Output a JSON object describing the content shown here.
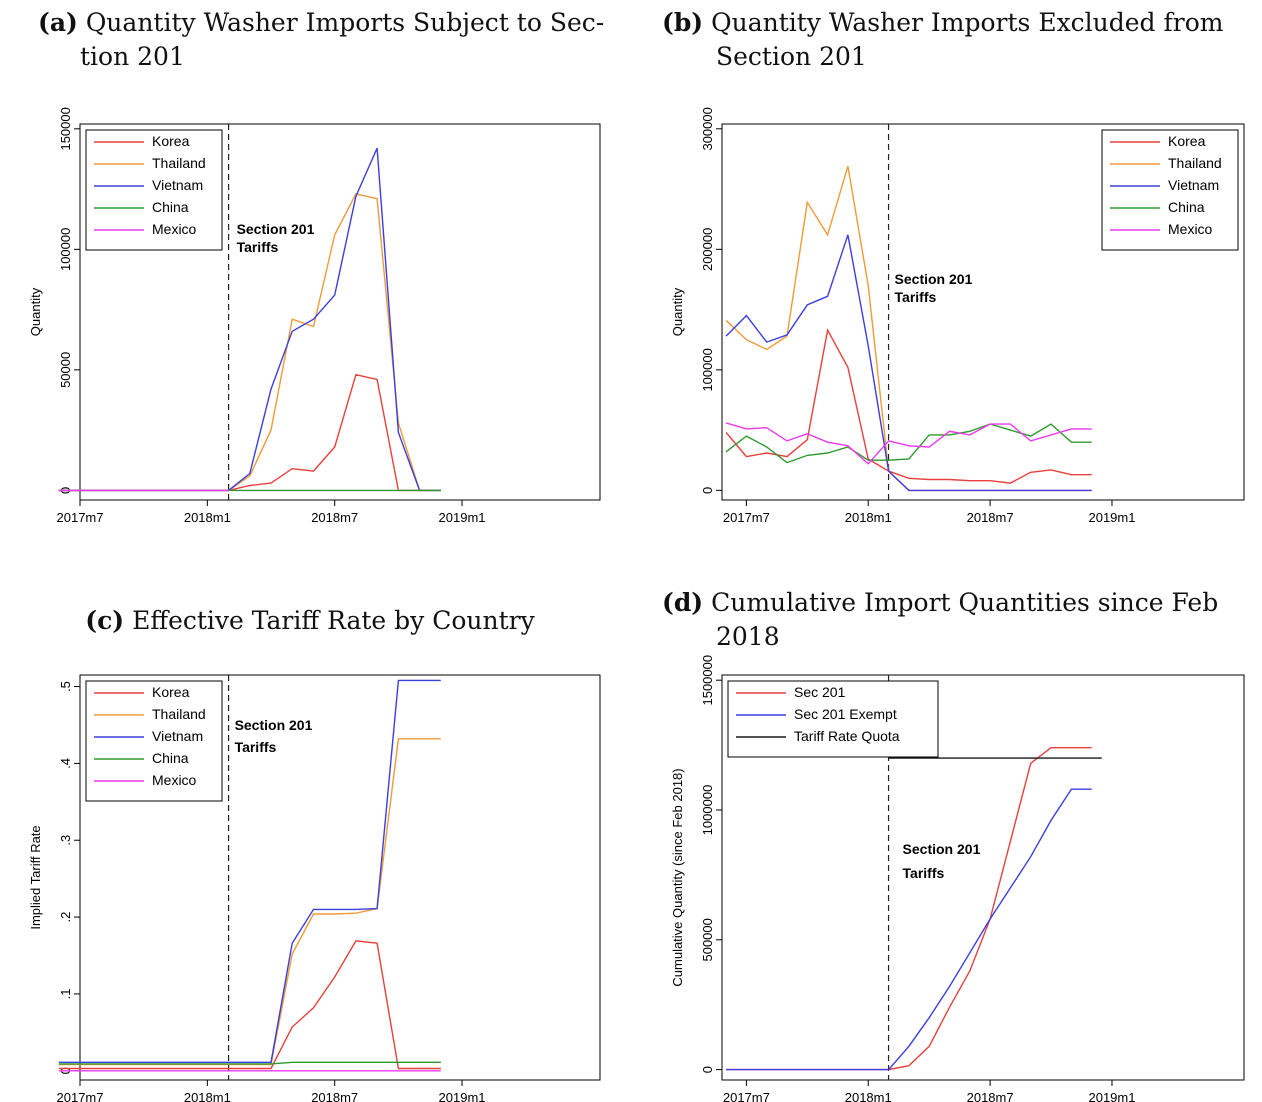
{
  "chart_data": [
    {
      "id": "a",
      "type": "line",
      "tag": "(a)",
      "title": "Quantity Washer Imports Subject to Section 201",
      "caption_lines": [
        "Quantity Washer Imports Subject to Sec-",
        "tion 201"
      ],
      "ylabel": "Quantity",
      "xlabel": "",
      "xlim": [
        0,
        24.5
      ],
      "ylim": [
        -4000,
        152000
      ],
      "yticks": [
        {
          "v": 0,
          "label": "0"
        },
        {
          "v": 50000,
          "label": "50000"
        },
        {
          "v": 100000,
          "label": "100000"
        },
        {
          "v": 150000,
          "label": "150000"
        }
      ],
      "xticks": [
        {
          "v": 0,
          "label": "2017m7"
        },
        {
          "v": 6,
          "label": "2018m1"
        },
        {
          "v": 12,
          "label": "2018m7"
        },
        {
          "v": 18,
          "label": "2019m1"
        }
      ],
      "vline": {
        "x": 7,
        "label_lines": [
          "Section 201",
          "Tariffs"
        ]
      },
      "legend": {
        "position": "top-left"
      },
      "series": [
        {
          "name": "Korea",
          "color": "#e8413c",
          "x": [
            -1,
            7,
            8,
            9,
            10,
            11,
            12,
            13,
            14,
            15,
            16,
            17
          ],
          "y": [
            0,
            0,
            2000,
            3000,
            9000,
            8000,
            18000,
            48000,
            46000,
            0,
            0,
            0
          ]
        },
        {
          "name": "Thailand",
          "color": "#f19a38",
          "x": [
            -1,
            7,
            8,
            9,
            10,
            11,
            12,
            13,
            14,
            15,
            16,
            17
          ],
          "y": [
            0,
            0,
            6000,
            25000,
            71000,
            68000,
            106000,
            123000,
            121000,
            28000,
            0,
            0
          ]
        },
        {
          "name": "Vietnam",
          "color": "#3b3ee0",
          "x": [
            -1,
            7,
            8,
            9,
            10,
            11,
            12,
            13,
            14,
            15,
            16,
            17
          ],
          "y": [
            0,
            0,
            7000,
            42000,
            66000,
            71000,
            81000,
            122000,
            142000,
            24000,
            0,
            0
          ]
        },
        {
          "name": "China",
          "color": "#2e9a2e",
          "x": [
            -1,
            17
          ],
          "y": [
            0,
            0
          ]
        },
        {
          "name": "Mexico",
          "color": "#ee38ee",
          "x": [
            -1,
            7
          ],
          "y": [
            0,
            0
          ]
        }
      ]
    },
    {
      "id": "b",
      "type": "line",
      "tag": "(b)",
      "title": "Quantity Washer Imports Excluded from Section 201",
      "caption_lines": [
        "Quantity Washer Imports Excluded from",
        "Section 201"
      ],
      "ylabel": "Quantity",
      "xlabel": "",
      "xlim": [
        -1.2,
        24.5
      ],
      "ylim": [
        -8000,
        304000
      ],
      "yticks": [
        {
          "v": 0,
          "label": "0"
        },
        {
          "v": 100000,
          "label": "100000"
        },
        {
          "v": 200000,
          "label": "200000"
        },
        {
          "v": 300000,
          "label": "300000"
        }
      ],
      "xticks": [
        {
          "v": 0,
          "label": "2017m7"
        },
        {
          "v": 6,
          "label": "2018m1"
        },
        {
          "v": 12,
          "label": "2018m7"
        },
        {
          "v": 18,
          "label": "2019m1"
        }
      ],
      "vline": {
        "x": 7,
        "label_lines": [
          "Section 201",
          "Tariffs"
        ]
      },
      "legend": {
        "position": "top-right"
      },
      "series": [
        {
          "name": "Korea",
          "color": "#e8413c",
          "x": [
            -1,
            0,
            1,
            2,
            3,
            4,
            5,
            6,
            7,
            8,
            9,
            10,
            11,
            12,
            13,
            14,
            15,
            16,
            17
          ],
          "y": [
            48000,
            28000,
            31000,
            28000,
            42000,
            133000,
            102000,
            26000,
            16000,
            10000,
            9000,
            9000,
            8000,
            8000,
            6000,
            15000,
            17000,
            13000,
            13000
          ]
        },
        {
          "name": "Thailand",
          "color": "#f19a38",
          "x": [
            -1,
            0,
            1,
            2,
            3,
            4,
            5,
            6,
            7,
            8,
            9,
            10,
            11,
            12,
            13,
            14,
            15,
            16,
            17
          ],
          "y": [
            141000,
            125000,
            117000,
            128000,
            239000,
            212000,
            269000,
            170000,
            16000,
            0,
            0,
            0,
            0,
            0,
            0,
            0,
            0,
            0,
            0
          ]
        },
        {
          "name": "Vietnam",
          "color": "#3b3ee0",
          "x": [
            -1,
            0,
            1,
            2,
            3,
            4,
            5,
            6,
            7,
            8,
            9,
            10,
            11,
            12,
            13,
            14,
            15,
            16,
            17
          ],
          "y": [
            128000,
            145000,
            123000,
            129000,
            154000,
            161000,
            212000,
            120000,
            16000,
            0,
            0,
            0,
            0,
            0,
            0,
            0,
            0,
            0,
            0
          ]
        },
        {
          "name": "China",
          "color": "#2e9a2e",
          "x": [
            -1,
            0,
            1,
            2,
            3,
            4,
            5,
            6,
            7,
            8,
            9,
            10,
            11,
            12,
            13,
            14,
            15,
            16,
            17
          ],
          "y": [
            32000,
            45000,
            36000,
            23000,
            29000,
            31000,
            36000,
            25000,
            25000,
            26000,
            46000,
            46000,
            49000,
            55000,
            50000,
            45000,
            55000,
            40000,
            40000
          ]
        },
        {
          "name": "Mexico",
          "color": "#ee38ee",
          "x": [
            -1,
            0,
            1,
            2,
            3,
            4,
            5,
            6,
            7,
            8,
            9,
            10,
            11,
            12,
            13,
            14,
            15,
            16,
            17
          ],
          "y": [
            56000,
            51000,
            52000,
            41000,
            47000,
            40000,
            37000,
            22000,
            41000,
            37000,
            36000,
            49000,
            46000,
            55000,
            55000,
            41000,
            46000,
            51000,
            51000
          ]
        }
      ]
    },
    {
      "id": "c",
      "type": "line",
      "tag": "(c)",
      "title": "Effective Tariff Rate by Country",
      "caption_lines": [
        "Effective Tariff Rate by Country"
      ],
      "ylabel": "Implied Tariff Rate",
      "xlabel": "",
      "xlim": [
        0,
        24.5
      ],
      "ylim": [
        -0.012,
        0.515
      ],
      "yticks": [
        {
          "v": 0,
          "label": "0"
        },
        {
          "v": 0.1,
          "label": ".1"
        },
        {
          "v": 0.2,
          "label": ".2"
        },
        {
          "v": 0.3,
          "label": ".3"
        },
        {
          "v": 0.4,
          "label": ".4"
        },
        {
          "v": 0.5,
          "label": ".5"
        }
      ],
      "xticks": [
        {
          "v": 0,
          "label": "2017m7"
        },
        {
          "v": 6,
          "label": "2018m1"
        },
        {
          "v": 12,
          "label": "2018m7"
        },
        {
          "v": 18,
          "label": "2019m1"
        }
      ],
      "vline": {
        "x": 7,
        "label_lines": [
          "Section 201",
          "Tariffs"
        ]
      },
      "legend": {
        "position": "top-left"
      },
      "series": [
        {
          "name": "Korea",
          "color": "#e8413c",
          "x": [
            -1,
            7,
            8,
            9,
            10,
            11,
            12,
            13,
            14,
            15,
            16,
            17
          ],
          "y": [
            0.003,
            0.003,
            0.003,
            0.003,
            0.057,
            0.082,
            0.122,
            0.169,
            0.166,
            0.003,
            0.003,
            0.003
          ]
        },
        {
          "name": "Thailand",
          "color": "#f19a38",
          "x": [
            -1,
            7,
            8,
            9,
            10,
            11,
            12,
            13,
            14,
            15,
            16,
            17
          ],
          "y": [
            0.008,
            0.008,
            0.008,
            0.008,
            0.152,
            0.204,
            0.204,
            0.205,
            0.211,
            0.432,
            0.432,
            0.432
          ]
        },
        {
          "name": "Vietnam",
          "color": "#3b3ee0",
          "x": [
            -1,
            7,
            8,
            9,
            10,
            11,
            12,
            13,
            14,
            15,
            16,
            17
          ],
          "y": [
            0.011,
            0.011,
            0.011,
            0.011,
            0.166,
            0.21,
            0.21,
            0.21,
            0.211,
            0.508,
            0.508,
            0.508
          ]
        },
        {
          "name": "China",
          "color": "#2e9a2e",
          "x": [
            -1,
            7,
            8,
            9,
            10,
            11,
            12,
            13,
            14,
            15,
            16,
            17
          ],
          "y": [
            0.009,
            0.009,
            0.009,
            0.009,
            0.011,
            0.011,
            0.011,
            0.011,
            0.011,
            0.011,
            0.011,
            0.011
          ]
        },
        {
          "name": "Mexico",
          "color": "#ee38ee",
          "x": [
            -1,
            7,
            8,
            9,
            10,
            11,
            12,
            13,
            14,
            15,
            16,
            17
          ],
          "y": [
            0.0,
            0.0,
            0.0,
            0.0,
            0.0,
            0.0,
            0.0,
            0.0,
            0.0,
            0.0,
            0.0,
            0.0
          ]
        }
      ]
    },
    {
      "id": "d",
      "type": "line",
      "tag": "(d)",
      "title": "Cumulative Import Quantities since Feb 2018",
      "caption_lines": [
        "Cumulative Import Quantities since Feb",
        "2018"
      ],
      "ylabel": "Cumulative Quantity (since Feb 2018)",
      "xlabel": "",
      "xlim": [
        -1.2,
        24.5
      ],
      "ylim": [
        -40000,
        1520000
      ],
      "yticks": [
        {
          "v": 0,
          "label": "0"
        },
        {
          "v": 500000,
          "label": "500000"
        },
        {
          "v": 1000000,
          "label": "1000000"
        },
        {
          "v": 1500000,
          "label": "1500000"
        }
      ],
      "xticks": [
        {
          "v": 0,
          "label": "2017m7"
        },
        {
          "v": 6,
          "label": "2018m1"
        },
        {
          "v": 12,
          "label": "2018m7"
        },
        {
          "v": 18,
          "label": "2019m1"
        }
      ],
      "vline": {
        "x": 7,
        "label_lines": [
          "Section 201",
          "Tariffs"
        ]
      },
      "legend": {
        "position": "top-left"
      },
      "series": [
        {
          "name": "Sec 201",
          "color": "#e8413c",
          "x": [
            -1,
            7,
            8,
            9,
            10,
            11,
            12,
            13,
            14,
            15,
            16,
            17
          ],
          "y": [
            0,
            0,
            15000,
            90000,
            240000,
            380000,
            580000,
            880000,
            1180000,
            1240000,
            1240000,
            1240000
          ]
        },
        {
          "name": "Sec 201 Exempt",
          "color": "#3b3ee0",
          "x": [
            -1,
            7,
            8,
            9,
            10,
            11,
            12,
            13,
            14,
            15,
            16,
            17
          ],
          "y": [
            0,
            0,
            90000,
            200000,
            320000,
            450000,
            580000,
            700000,
            820000,
            960000,
            1080000,
            1080000
          ]
        },
        {
          "name": "Tariff Rate Quota",
          "color": "#1a1a1a",
          "x": [
            7,
            17.5
          ],
          "y": [
            1200000,
            1200000
          ]
        }
      ]
    }
  ]
}
